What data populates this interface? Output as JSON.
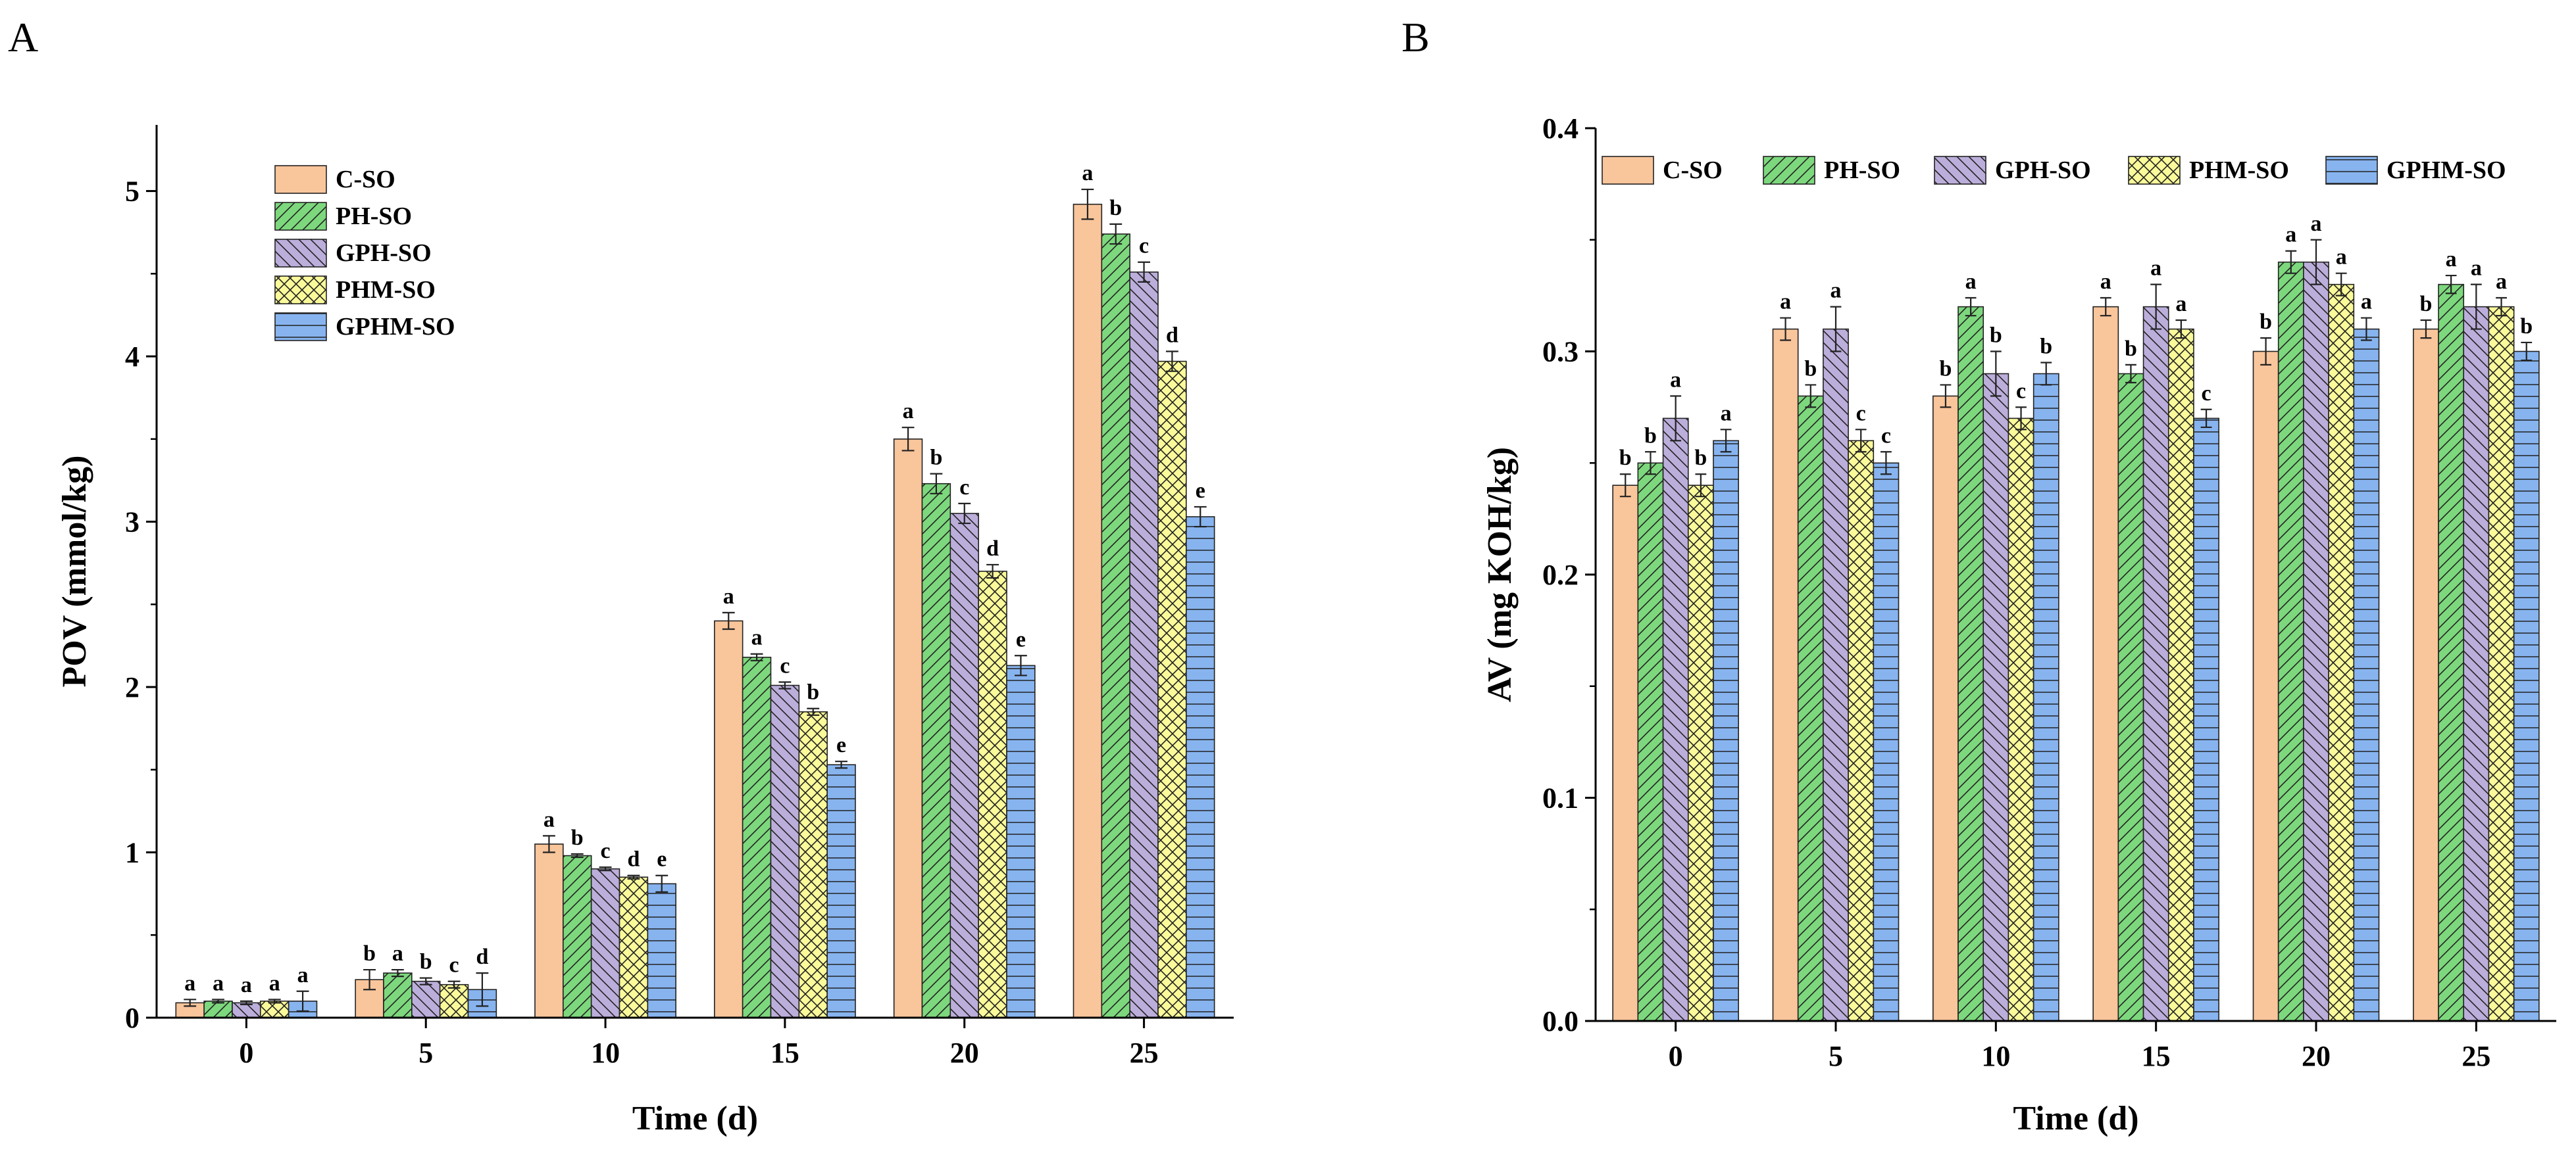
{
  "series_styles": [
    {
      "name": "C-SO",
      "color": "#f9c59b",
      "pattern": "none"
    },
    {
      "name": "PH-SO",
      "color": "#7dd87d",
      "pattern": "diag-right"
    },
    {
      "name": "GPH-SO",
      "color": "#bcaedb",
      "pattern": "diag-left"
    },
    {
      "name": "PHM-SO",
      "color": "#fafa9a",
      "pattern": "crosshatch"
    },
    {
      "name": "GPHM-SO",
      "color": "#87b4ef",
      "pattern": "horizontal"
    }
  ],
  "chart_data": [
    {
      "panel": "A",
      "type": "bar",
      "xlabel": "Time (d)",
      "ylabel": "POV (mmol/kg)",
      "ylim": [
        0,
        5.4
      ],
      "yticks": [
        0,
        1,
        2,
        3,
        4,
        5
      ],
      "categories": [
        "0",
        "5",
        "10",
        "15",
        "20",
        "25"
      ],
      "legend_placement": "top-left",
      "series": [
        {
          "name": "C-SO",
          "values": [
            0.09,
            0.23,
            1.05,
            2.4,
            3.5,
            4.92
          ],
          "errors": [
            0.02,
            0.06,
            0.05,
            0.05,
            0.07,
            0.09
          ],
          "letters": [
            "a",
            "b",
            "a",
            "a",
            "a",
            "a"
          ]
        },
        {
          "name": "PH-SO",
          "values": [
            0.1,
            0.27,
            0.98,
            2.18,
            3.23,
            4.74
          ],
          "errors": [
            0.01,
            0.02,
            0.01,
            0.02,
            0.06,
            0.06
          ],
          "letters": [
            "a",
            "a",
            "b",
            "a",
            "b",
            "b"
          ]
        },
        {
          "name": "GPH-SO",
          "values": [
            0.09,
            0.22,
            0.9,
            2.01,
            3.05,
            4.51
          ],
          "errors": [
            0.01,
            0.02,
            0.01,
            0.02,
            0.06,
            0.06
          ],
          "letters": [
            "a",
            "b",
            "c",
            "c",
            "c",
            "c"
          ]
        },
        {
          "name": "PHM-SO",
          "values": [
            0.1,
            0.2,
            0.85,
            1.85,
            2.7,
            3.97
          ],
          "errors": [
            0.01,
            0.02,
            0.01,
            0.02,
            0.04,
            0.06
          ],
          "letters": [
            "a",
            "c",
            "d",
            "b",
            "d",
            "d"
          ]
        },
        {
          "name": "GPHM-SO",
          "values": [
            0.1,
            0.17,
            0.81,
            1.53,
            2.13,
            3.03
          ],
          "errors": [
            0.06,
            0.1,
            0.05,
            0.02,
            0.06,
            0.06
          ],
          "letters": [
            "a",
            "d",
            "e",
            "e",
            "e",
            "e"
          ]
        }
      ]
    },
    {
      "panel": "B",
      "type": "bar",
      "xlabel": "Time (d)",
      "ylabel": "AV (mg KOH/kg)",
      "ylim": [
        0,
        0.4
      ],
      "yticks": [
        0.0,
        0.1,
        0.2,
        0.3,
        0.4
      ],
      "categories": [
        "0",
        "5",
        "10",
        "15",
        "20",
        "25"
      ],
      "legend_placement": "top (single row)",
      "series": [
        {
          "name": "C-SO",
          "values": [
            0.24,
            0.31,
            0.28,
            0.32,
            0.3,
            0.31
          ],
          "errors": [
            0.005,
            0.005,
            0.005,
            0.004,
            0.006,
            0.004
          ],
          "letters": [
            "b",
            "a",
            "b",
            "a",
            "b",
            "b"
          ]
        },
        {
          "name": "PH-SO",
          "values": [
            0.25,
            0.28,
            0.32,
            0.29,
            0.34,
            0.33
          ],
          "errors": [
            0.005,
            0.005,
            0.004,
            0.004,
            0.005,
            0.004
          ],
          "letters": [
            "b",
            "b",
            "a",
            "b",
            "a",
            "a"
          ]
        },
        {
          "name": "GPH-SO",
          "values": [
            0.27,
            0.31,
            0.29,
            0.32,
            0.34,
            0.32
          ],
          "errors": [
            0.01,
            0.01,
            0.01,
            0.01,
            0.01,
            0.01
          ],
          "letters": [
            "a",
            "a",
            "b",
            "a",
            "a",
            "a"
          ]
        },
        {
          "name": "PHM-SO",
          "values": [
            0.24,
            0.26,
            0.27,
            0.31,
            0.33,
            0.32
          ],
          "errors": [
            0.005,
            0.005,
            0.005,
            0.004,
            0.005,
            0.004
          ],
          "letters": [
            "b",
            "c",
            "c",
            "a",
            "a",
            "a"
          ]
        },
        {
          "name": "GPHM-SO",
          "values": [
            0.26,
            0.25,
            0.29,
            0.27,
            0.31,
            0.3
          ],
          "errors": [
            0.005,
            0.005,
            0.005,
            0.004,
            0.005,
            0.004
          ],
          "letters": [
            "a",
            "c",
            "b",
            "c",
            "a",
            "b"
          ]
        }
      ]
    }
  ]
}
